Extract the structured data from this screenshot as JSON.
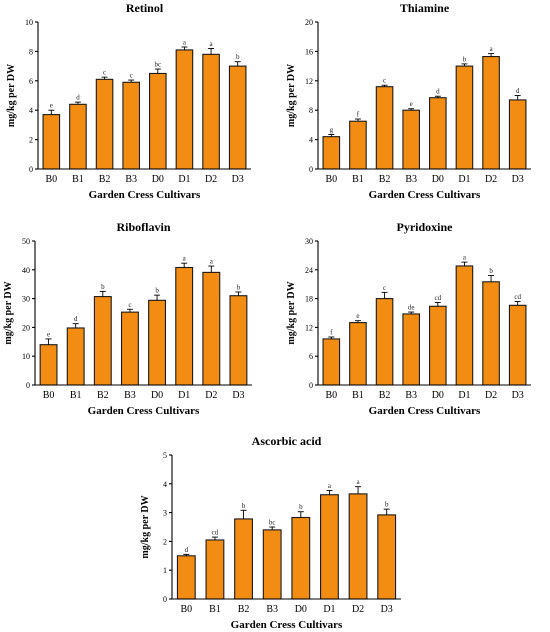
{
  "colors": {
    "bar_fill": "#f28c12",
    "bar_stroke": "#1a1a1a"
  },
  "chart_data": [
    {
      "type": "bar",
      "title": "Retinol",
      "xlabel": "Garden Cress Cultivars",
      "ylabel": "mg/kg per DW",
      "categories": [
        "B0",
        "B1",
        "B2",
        "B3",
        "D0",
        "D1",
        "D2",
        "D3"
      ],
      "values": [
        3.7,
        4.4,
        6.1,
        5.9,
        6.5,
        8.1,
        7.8,
        7.0
      ],
      "errors": [
        0.3,
        0.15,
        0.15,
        0.15,
        0.3,
        0.2,
        0.4,
        0.3
      ],
      "letters": [
        "e",
        "d",
        "c",
        "c",
        "bc",
        "a",
        "a",
        "b"
      ],
      "ylim": [
        0,
        10
      ],
      "yticks": [
        0,
        2,
        4,
        6,
        8,
        10
      ]
    },
    {
      "type": "bar",
      "title": "Thiamine",
      "xlabel": "Garden Cress Cultivars",
      "ylabel": "mg/kg per DW",
      "categories": [
        "B0",
        "B1",
        "B2",
        "B3",
        "D0",
        "D1",
        "D2",
        "D3"
      ],
      "values": [
        4.4,
        6.5,
        11.2,
        8.0,
        9.7,
        14.0,
        15.3,
        9.4
      ],
      "errors": [
        0.3,
        0.3,
        0.2,
        0.2,
        0.2,
        0.3,
        0.4,
        0.6
      ],
      "letters": [
        "g",
        "f",
        "c",
        "e",
        "d",
        "b",
        "a",
        "d"
      ],
      "ylim": [
        0,
        20
      ],
      "yticks": [
        0,
        4,
        8,
        12,
        16,
        20
      ]
    },
    {
      "type": "bar",
      "title": "Riboflavin",
      "xlabel": "Garden Cress Cultivars",
      "ylabel": "mg/kg per DW",
      "categories": [
        "B0",
        "B1",
        "B2",
        "B3",
        "D0",
        "D1",
        "D2",
        "D3"
      ],
      "values": [
        14,
        19.8,
        30.7,
        25.3,
        29.4,
        40.8,
        39.1,
        31.0
      ],
      "errors": [
        2.0,
        1.5,
        1.8,
        1.0,
        1.8,
        1.5,
        2.2,
        1.3
      ],
      "letters": [
        "e",
        "d",
        "b",
        "c",
        "b",
        "a",
        "a",
        "b"
      ],
      "ylim": [
        0,
        50
      ],
      "yticks": [
        0,
        10,
        20,
        30,
        40,
        50
      ]
    },
    {
      "type": "bar",
      "title": "Pyridoxine",
      "xlabel": "Garden Cress Cultivars",
      "ylabel": "mg/kg per DW",
      "categories": [
        "B0",
        "B1",
        "B2",
        "B3",
        "D0",
        "D1",
        "D2",
        "D3"
      ],
      "values": [
        9.6,
        13.0,
        18.0,
        14.8,
        16.4,
        24.8,
        21.5,
        16.6
      ],
      "errors": [
        0.4,
        0.4,
        1.3,
        0.4,
        0.8,
        0.8,
        1.3,
        0.8
      ],
      "letters": [
        "f",
        "e",
        "c",
        "de",
        "cd",
        "a",
        "b",
        "cd"
      ],
      "ylim": [
        0,
        30
      ],
      "yticks": [
        0,
        6,
        12,
        18,
        24,
        30
      ]
    },
    {
      "type": "bar",
      "title": "Ascorbic acid",
      "xlabel": "Garden Cress Cultivars",
      "ylabel": "mg/kg per DW",
      "categories": [
        "B0",
        "B1",
        "B2",
        "B3",
        "D0",
        "D1",
        "D2",
        "D3"
      ],
      "values": [
        1.5,
        2.05,
        2.78,
        2.4,
        2.83,
        3.62,
        3.65,
        2.92
      ],
      "errors": [
        0.05,
        0.1,
        0.3,
        0.1,
        0.2,
        0.15,
        0.25,
        0.2
      ],
      "letters": [
        "d",
        "cd",
        "b",
        "bc",
        "b",
        "a",
        "a",
        "b"
      ],
      "ylim": [
        0,
        5
      ],
      "yticks": [
        0,
        1,
        2,
        3,
        4,
        5
      ]
    }
  ]
}
